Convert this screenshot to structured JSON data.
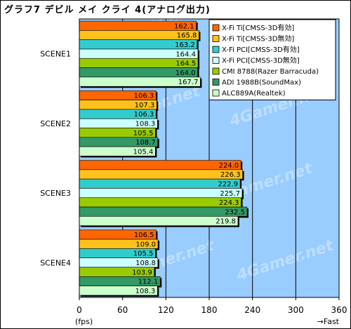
{
  "title": "グラフ7 デビル メイ クライ 4(アナログ出力)",
  "chart_data": {
    "type": "bar",
    "orientation": "horizontal",
    "categories": [
      "SCENE1",
      "SCENE2",
      "SCENE3",
      "SCENE4"
    ],
    "series": [
      {
        "name": "X-Fi Ti[CMSS-3D有効]",
        "color": "#ff6600",
        "values": [
          162.1,
          106.3,
          224.0,
          106.5
        ]
      },
      {
        "name": "X-Fi Ti[CMSS-3D無効]",
        "color": "#ffc21a",
        "values": [
          165.8,
          107.3,
          226.3,
          109.0
        ]
      },
      {
        "name": "X-Fi PCI[CMSS-3D有効]",
        "color": "#33cccc",
        "values": [
          163.2,
          106.3,
          222.9,
          105.5
        ]
      },
      {
        "name": "X-Fi PCI[CMSS-3D無効]",
        "color": "#ccffff",
        "values": [
          164.4,
          108.3,
          225.7,
          108.8
        ]
      },
      {
        "name": "CMI 8788(Razer Barracuda)",
        "color": "#99cc00",
        "values": [
          164.5,
          105.5,
          224.3,
          103.9
        ]
      },
      {
        "name": "ADI 1988B(SoundMax)",
        "color": "#339966",
        "values": [
          164.0,
          108.7,
          232.5,
          112.1
        ]
      },
      {
        "name": "ALC889A(Realtek)",
        "color": "#ccffcc",
        "values": [
          167.7,
          105.4,
          219.8,
          108.3
        ]
      }
    ],
    "xlim": [
      0,
      360
    ],
    "xticks": [
      0,
      60,
      120,
      180,
      240,
      300,
      360
    ],
    "unit_label": "(fps)",
    "direction_label": "→Fast",
    "watermark": "4Gamer.net",
    "plot_background": "#99ccff",
    "grid": true,
    "legend_position": "top-right"
  }
}
